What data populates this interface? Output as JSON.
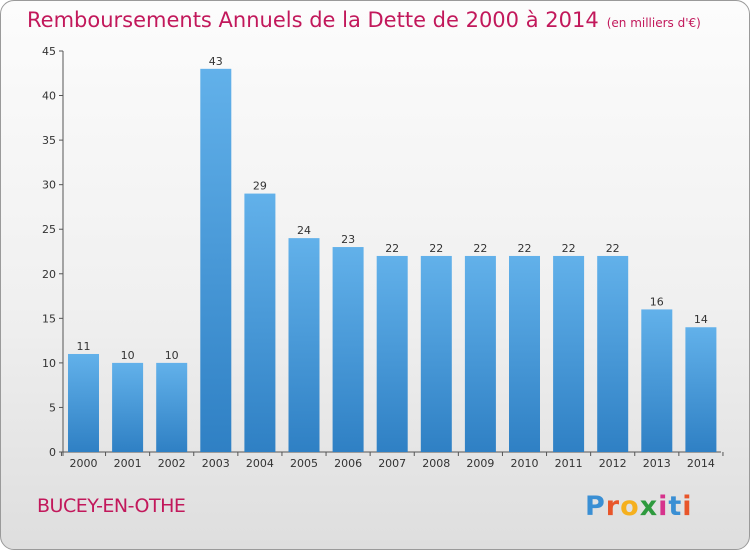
{
  "header": {
    "title": "Remboursements Annuels de la Dette de 2000 à 2014",
    "subtitle": "(en milliers d'€)"
  },
  "footer": {
    "place_name": "BUCEY-EN-OTHE",
    "logo_letters": [
      "P",
      "r",
      "o",
      "x",
      "i",
      "t",
      "i"
    ]
  },
  "colors": {
    "title": "#c2185b",
    "bar_light": "#62b1ea",
    "bar_dark": "#2f80c4",
    "logo": [
      "#3a8fd4",
      "#e8552a",
      "#f5b01e",
      "#2e9a3e",
      "#d6338c",
      "#3a8fd4",
      "#e8552a"
    ]
  },
  "chart_data": {
    "type": "bar",
    "categories": [
      "2000",
      "2001",
      "2002",
      "2003",
      "2004",
      "2005",
      "2006",
      "2007",
      "2008",
      "2009",
      "2010",
      "2011",
      "2012",
      "2013",
      "2014"
    ],
    "values": [
      11,
      10,
      10,
      43,
      29,
      24,
      23,
      22,
      22,
      22,
      22,
      22,
      22,
      16,
      14
    ],
    "data_labels": [
      "11",
      "10",
      "10",
      "43",
      "29",
      "24",
      "23",
      "22",
      "22",
      "22",
      "22",
      "22",
      "22",
      "16",
      "14"
    ],
    "yticks": [
      "0",
      "5",
      "10",
      "15",
      "20",
      "25",
      "30",
      "35",
      "40",
      "45"
    ],
    "ylim": [
      0,
      45
    ],
    "xlabel": "",
    "ylabel": "",
    "grid": false,
    "legend": "none"
  }
}
